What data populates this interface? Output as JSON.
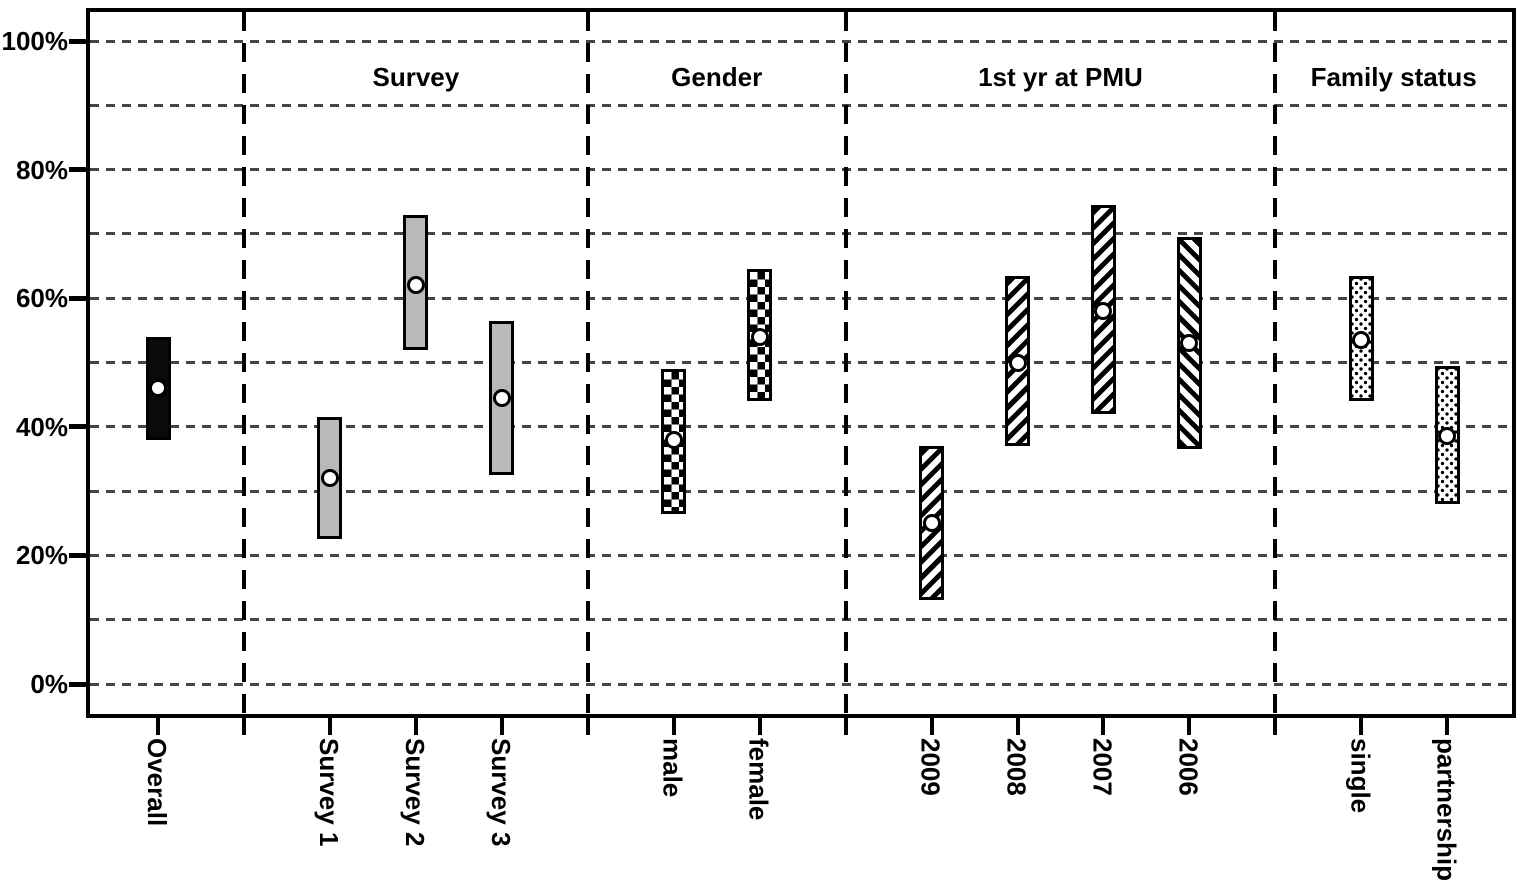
{
  "chart_data": {
    "type": "range-bar",
    "title": "",
    "xlabel": "",
    "ylabel": "",
    "y_axis": {
      "tick_labels": [
        "100%",
        "80%",
        "60%",
        "40%",
        "20%",
        "0%"
      ],
      "tick_values": [
        100,
        80,
        60,
        40,
        20,
        0
      ],
      "gridline_step": 10,
      "ylim": [
        0,
        100
      ],
      "grid": "dashed horizontal every 10%"
    },
    "marker": "white dot = point estimate at middle of interval",
    "legend_position": "none",
    "groups": [
      {
        "label": "",
        "categories": [
          {
            "label": "Overall",
            "low": 38,
            "high": 54,
            "mid": 46,
            "pattern": "solid-black"
          }
        ]
      },
      {
        "label": "Survey",
        "categories": [
          {
            "label": "Survey 1",
            "low": 22.5,
            "high": 41.5,
            "mid": 32,
            "pattern": "solid-gray"
          },
          {
            "label": "Survey 2",
            "low": 52,
            "high": 73,
            "mid": 62,
            "pattern": "solid-gray"
          },
          {
            "label": "Survey 3",
            "low": 32.5,
            "high": 56.5,
            "mid": 44.5,
            "pattern": "solid-gray"
          }
        ]
      },
      {
        "label": "Gender",
        "categories": [
          {
            "label": "male",
            "low": 26.5,
            "high": 49,
            "mid": 38,
            "pattern": "checker"
          },
          {
            "label": "female",
            "low": 44,
            "high": 64.5,
            "mid": 54,
            "pattern": "checker"
          }
        ]
      },
      {
        "label": "1st yr at PMU",
        "categories": [
          {
            "label": "2009",
            "low": 13,
            "high": 37,
            "mid": 25,
            "pattern": "hatch-forward"
          },
          {
            "label": "2008",
            "low": 37,
            "high": 63.5,
            "mid": 50,
            "pattern": "hatch-forward"
          },
          {
            "label": "2007",
            "low": 42,
            "high": 74.5,
            "mid": 58,
            "pattern": "hatch-forward"
          },
          {
            "label": "2006",
            "low": 36.5,
            "high": 69.5,
            "mid": 53,
            "pattern": "hatch-back"
          }
        ]
      },
      {
        "label": "Family status",
        "categories": [
          {
            "label": "single",
            "low": 44,
            "high": 63.5,
            "mid": 53.5,
            "pattern": "dotted"
          },
          {
            "label": "partnership",
            "low": 28,
            "high": 49.5,
            "mid": 38.5,
            "pattern": "dotted"
          }
        ]
      }
    ],
    "colors": {
      "background": "#ffffff",
      "axis": "#000000",
      "grid": "#454545",
      "bar_black": "#0a0a0a",
      "bar_gray": "#b9b9b9",
      "dot_fill": "#ffffff"
    }
  }
}
